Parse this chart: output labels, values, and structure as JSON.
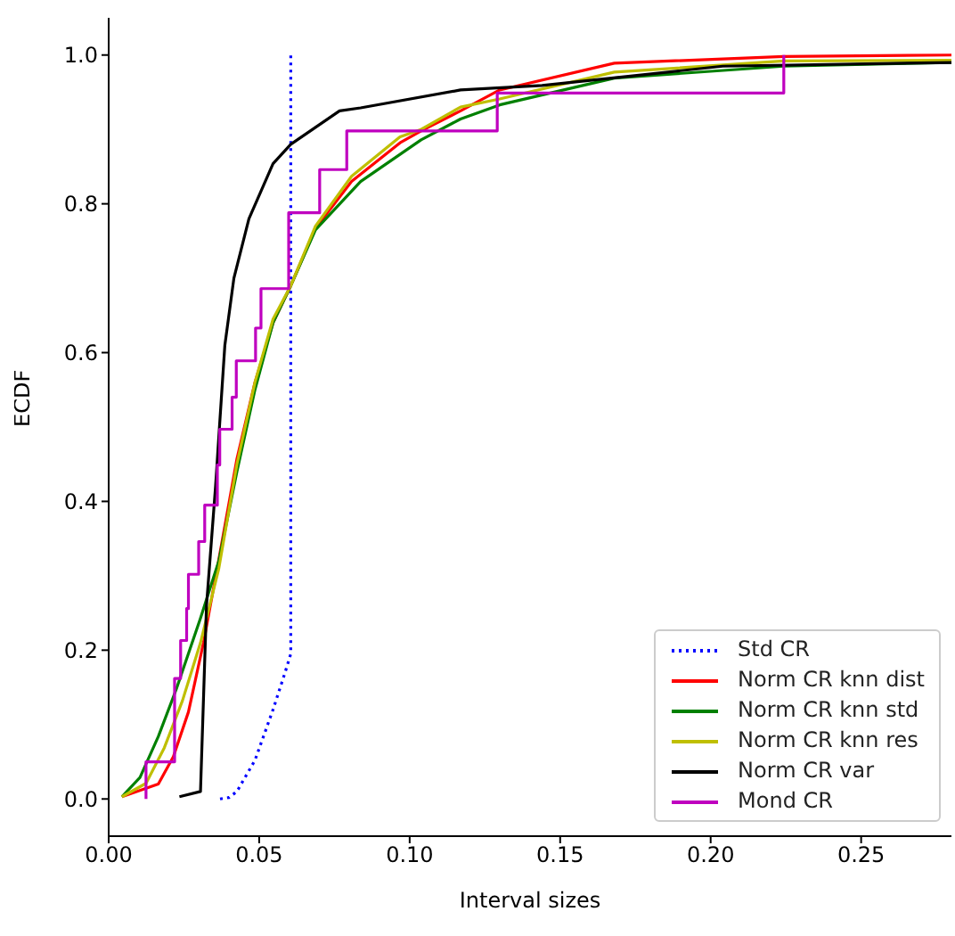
{
  "chart_data": {
    "type": "line",
    "xlabel": "Interval sizes",
    "ylabel": "ECDF",
    "xlim": [
      0,
      0.28
    ],
    "xticks": [
      {
        "value": 0,
        "label": "0.00"
      },
      0.05,
      {
        "value": 0.1,
        "label": "0.10"
      },
      0.15,
      {
        "value": 0.2,
        "label": "0.20"
      },
      0.25
    ],
    "ylim": [
      -0.05,
      1.05
    ],
    "yticks": [
      {
        "value": 0,
        "label": "0.0"
      },
      0.2,
      0.4,
      0.6,
      0.8,
      {
        "value": 1,
        "label": "1.0"
      }
    ],
    "legend": "bottom right",
    "grid": false,
    "series": [
      {
        "name": "Std CR",
        "color": "#0000ff",
        "line_style": "dotted",
        "x": [
          0.037,
          0.04,
          0.0426,
          0.0486,
          0.0546,
          0.0586,
          0.0605,
          0.0605
        ],
        "values": [
          0,
          0.002,
          0.01,
          0.052,
          0.12,
          0.17,
          0.195,
          1.0
        ]
      },
      {
        "name": "Norm CR knn dist",
        "color": "#ff0000",
        "x": [
          0.0044,
          0.0165,
          0.0215,
          0.0265,
          0.0315,
          0.0366,
          0.0426,
          0.0486,
          0.0546,
          0.0605,
          0.0687,
          0.0807,
          0.0968,
          0.1038,
          0.1169,
          0.1299,
          0.168,
          0.2243,
          0.28
        ],
        "values": [
          0.003,
          0.02,
          0.057,
          0.117,
          0.21,
          0.322,
          0.457,
          0.56,
          0.64,
          0.69,
          0.767,
          0.83,
          0.882,
          0.898,
          0.925,
          0.953,
          0.989,
          0.998,
          1.0
        ]
      },
      {
        "name": "Norm CR knn std",
        "color": "#008000",
        "x": [
          0.0044,
          0.0104,
          0.0165,
          0.0225,
          0.0305,
          0.0366,
          0.0426,
          0.0486,
          0.0546,
          0.0605,
          0.0687,
          0.0837,
          0.1038,
          0.1169,
          0.1299,
          0.168,
          0.2243,
          0.28
        ],
        "values": [
          0.003,
          0.029,
          0.084,
          0.148,
          0.243,
          0.32,
          0.44,
          0.55,
          0.64,
          0.69,
          0.765,
          0.83,
          0.886,
          0.914,
          0.933,
          0.969,
          0.985,
          0.99
        ]
      },
      {
        "name": "Norm CR knn res",
        "color": "#bfbf00",
        "x": [
          0.0044,
          0.0124,
          0.0185,
          0.0245,
          0.0305,
          0.0366,
          0.0426,
          0.0486,
          0.0546,
          0.0605,
          0.0687,
          0.0807,
          0.0968,
          0.1038,
          0.1169,
          0.1299,
          0.168,
          0.2243,
          0.28
        ],
        "values": [
          0.003,
          0.021,
          0.069,
          0.132,
          0.21,
          0.31,
          0.45,
          0.56,
          0.645,
          0.69,
          0.77,
          0.837,
          0.89,
          0.9,
          0.93,
          0.941,
          0.977,
          0.992,
          0.993
        ]
      },
      {
        "name": "Norm CR var",
        "color": "#000000",
        "x": [
          0.0235,
          0.0305,
          0.0325,
          0.0355,
          0.0386,
          0.0416,
          0.0466,
          0.0546,
          0.0605,
          0.0767,
          0.0837,
          0.1169,
          0.144,
          0.204,
          0.28
        ],
        "values": [
          0.003,
          0.01,
          0.26,
          0.42,
          0.61,
          0.7,
          0.78,
          0.854,
          0.88,
          0.925,
          0.929,
          0.953,
          0.959,
          0.985,
          0.99
        ]
      },
      {
        "name": "Mond CR",
        "color": "#bf00bf",
        "type": "step",
        "x": [
          0.0124,
          0.0124,
          0.0219,
          0.0239,
          0.0259,
          0.0265,
          0.0299,
          0.0319,
          0.0361,
          0.0369,
          0.041,
          0.0424,
          0.0488,
          0.0506,
          0.0598,
          0.0701,
          0.0791,
          0.1291,
          0.2243
        ],
        "values": [
          0,
          0.05,
          0.162,
          0.213,
          0.256,
          0.302,
          0.346,
          0.395,
          0.449,
          0.497,
          0.54,
          0.589,
          0.633,
          0.686,
          0.788,
          0.846,
          0.898,
          0.949,
          1.0
        ]
      }
    ]
  }
}
